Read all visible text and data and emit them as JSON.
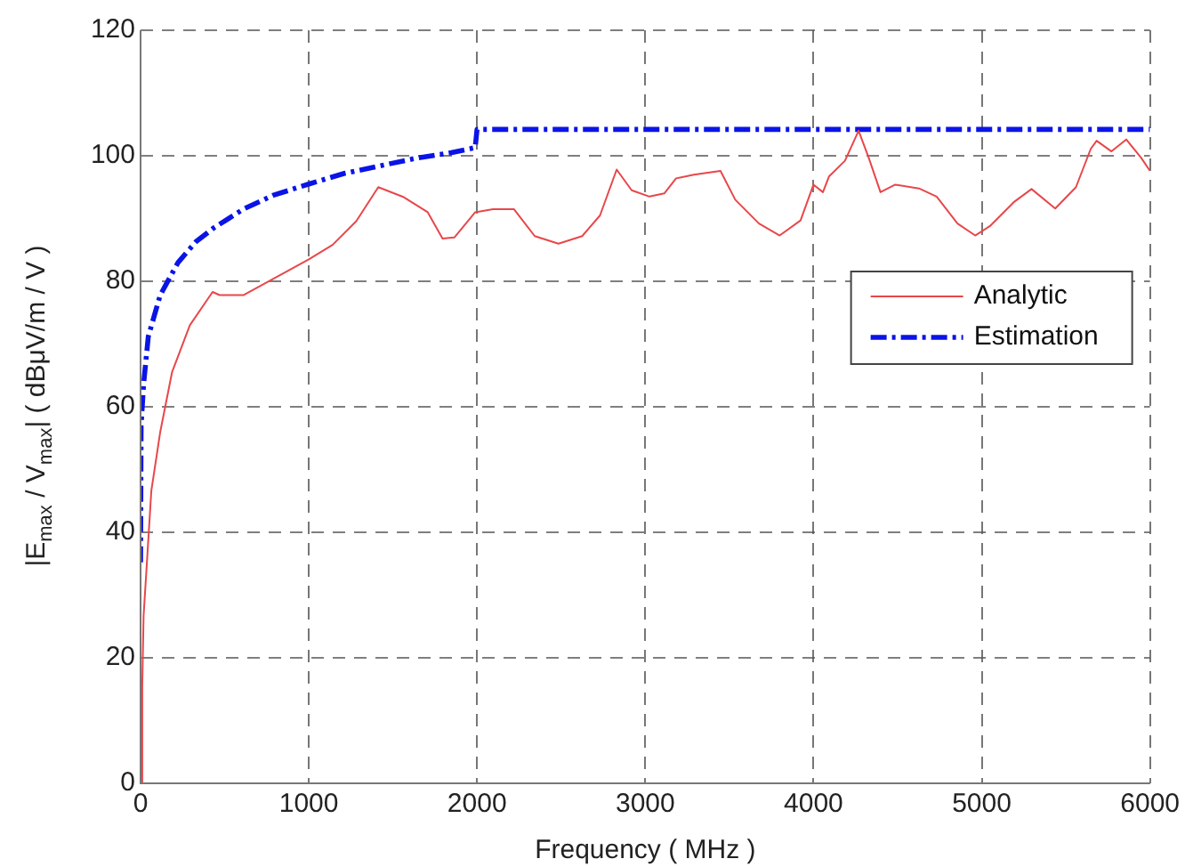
{
  "chart_data": {
    "type": "line",
    "xlabel": "Frequency ( MHz )",
    "ylabel": "|E$_{max}$ / V$_{max}$| ( dBμV/m / V )",
    "xlim": [
      0,
      6000
    ],
    "xticks": [
      0,
      1000,
      2000,
      3000,
      4000,
      5000,
      6000
    ],
    "ylim": [
      0,
      120
    ],
    "yticks": [
      0,
      20,
      40,
      60,
      80,
      100,
      120
    ],
    "grid": true,
    "legend": "right",
    "marker": "none",
    "series": [
      {
        "name": "Analytic",
        "color": "#e8474a",
        "line_style": "solid",
        "x": [
          0,
          10,
          18,
          35,
          64,
          117,
          187,
          293,
          428,
          470,
          611,
          1000,
          1141,
          1283,
          1413,
          1565,
          1707,
          1795,
          1866,
          1989,
          2095,
          2219,
          2343,
          2484,
          2625,
          2731,
          2830,
          2919,
          3025,
          3113,
          3183,
          3289,
          3447,
          3535,
          3676,
          3799,
          3923,
          4000,
          4056,
          4092,
          4187,
          4268,
          4328,
          4398,
          4486,
          4627,
          4732,
          4856,
          4961,
          5049,
          5190,
          5296,
          5437,
          5560,
          5648,
          5683,
          5771,
          5859,
          5947,
          6000
        ],
        "values": [
          0,
          15.4,
          26.7,
          34,
          46.6,
          56,
          65.5,
          73,
          78.3,
          77.8,
          77.8,
          83.5,
          85.8,
          89.6,
          95,
          93.4,
          91,
          86.8,
          87,
          91,
          91.5,
          91.5,
          87.2,
          86,
          87.2,
          90.5,
          97.8,
          94.5,
          93.5,
          94,
          96.4,
          97,
          97.6,
          93,
          89.2,
          87.3,
          89.7,
          95.4,
          94.2,
          96.7,
          99.2,
          104,
          99.7,
          94.2,
          95.4,
          94.8,
          93.5,
          89.2,
          87.3,
          88.8,
          92.6,
          94.7,
          91.6,
          95,
          101.1,
          102.4,
          100.7,
          102.6,
          99.7,
          97.6
        ]
      },
      {
        "name": "Estimation",
        "color": "#0a14e6",
        "line_style": "dashed",
        "x": [
          0,
          3,
          18,
          46,
          117,
          223,
          329,
          435,
          611,
          788,
          1000,
          1212,
          1424,
          1636,
          1848,
          1989,
          2000,
          6000
        ],
        "values": [
          35.2,
          57,
          63.6,
          71.2,
          77.8,
          83,
          86.3,
          88.5,
          91.5,
          93.7,
          95.5,
          97.2,
          98.4,
          99.6,
          100.5,
          101.3,
          104.2,
          104.2
        ]
      }
    ]
  }
}
